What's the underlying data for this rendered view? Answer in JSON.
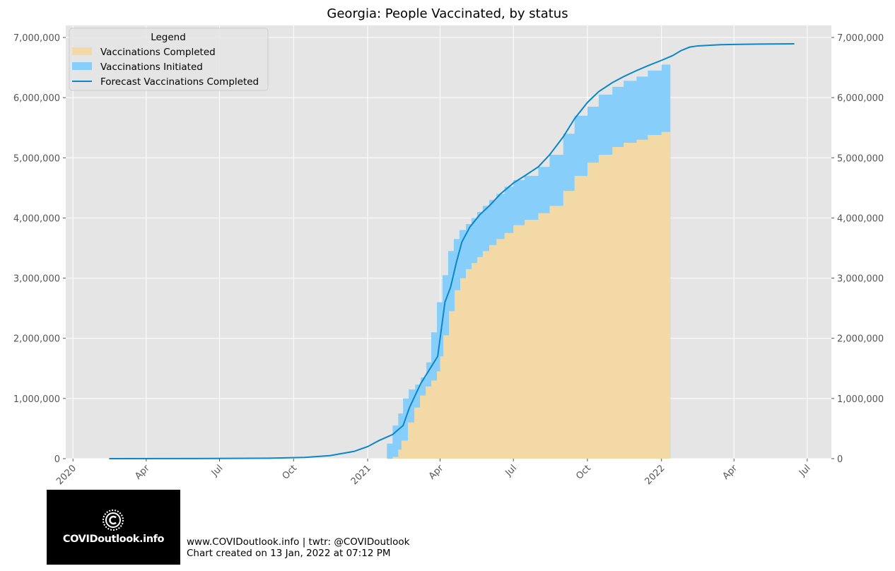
{
  "chart_data": {
    "type": "area",
    "title": "Georgia: People Vaccinated, by status",
    "xlabel": "",
    "ylabel": "",
    "x_range": [
      "2019-12-23",
      "2022-07-31"
    ],
    "ylim": [
      0,
      7200000
    ],
    "y_ticks": [
      0,
      1000000,
      2000000,
      3000000,
      4000000,
      5000000,
      6000000,
      7000000
    ],
    "y_tick_labels": [
      "0",
      "1,000,000",
      "2,000,000",
      "3,000,000",
      "4,000,000",
      "5,000,000",
      "6,000,000",
      "7,000,000"
    ],
    "x_ticks": [
      {
        "date": "2020-01-01",
        "label": "2020"
      },
      {
        "date": "2020-04-01",
        "label": "Apr"
      },
      {
        "date": "2020-07-01",
        "label": "Jul"
      },
      {
        "date": "2020-10-01",
        "label": "Oct"
      },
      {
        "date": "2021-01-01",
        "label": "2021"
      },
      {
        "date": "2021-04-01",
        "label": "Apr"
      },
      {
        "date": "2021-07-01",
        "label": "Jul"
      },
      {
        "date": "2021-10-01",
        "label": "Oct"
      },
      {
        "date": "2022-01-01",
        "label": "2022"
      },
      {
        "date": "2022-04-01",
        "label": "Apr"
      },
      {
        "date": "2022-07-01",
        "label": "Jul"
      }
    ],
    "grid": true,
    "legend_position": "top-left",
    "legend_title": "Legend",
    "series": [
      {
        "name": "Vaccinations Completed",
        "kind": "area",
        "color": "#f2d9a6",
        "points": [
          [
            "2021-01-24",
            0
          ],
          [
            "2021-02-01",
            30000
          ],
          [
            "2021-02-08",
            150000
          ],
          [
            "2021-02-12",
            300000
          ],
          [
            "2021-02-20",
            600000
          ],
          [
            "2021-02-28",
            850000
          ],
          [
            "2021-03-07",
            1050000
          ],
          [
            "2021-03-14",
            1200000
          ],
          [
            "2021-03-21",
            1300000
          ],
          [
            "2021-03-28",
            1450000
          ],
          [
            "2021-04-01",
            1700000
          ],
          [
            "2021-04-05",
            2050000
          ],
          [
            "2021-04-12",
            2450000
          ],
          [
            "2021-04-19",
            2800000
          ],
          [
            "2021-04-26",
            3000000
          ],
          [
            "2021-05-03",
            3150000
          ],
          [
            "2021-05-10",
            3250000
          ],
          [
            "2021-05-17",
            3350000
          ],
          [
            "2021-05-24",
            3450000
          ],
          [
            "2021-06-01",
            3550000
          ],
          [
            "2021-06-10",
            3650000
          ],
          [
            "2021-06-20",
            3750000
          ],
          [
            "2021-07-01",
            3880000
          ],
          [
            "2021-07-15",
            3970000
          ],
          [
            "2021-08-01",
            4080000
          ],
          [
            "2021-08-15",
            4200000
          ],
          [
            "2021-09-01",
            4450000
          ],
          [
            "2021-09-15",
            4700000
          ],
          [
            "2021-10-01",
            4920000
          ],
          [
            "2021-10-15",
            5050000
          ],
          [
            "2021-11-01",
            5180000
          ],
          [
            "2021-11-15",
            5250000
          ],
          [
            "2021-12-01",
            5300000
          ],
          [
            "2021-12-15",
            5380000
          ],
          [
            "2022-01-01",
            5430000
          ],
          [
            "2022-01-12",
            5470000
          ]
        ]
      },
      {
        "name": "Vaccinations Initiated",
        "kind": "area",
        "color": "#87cefa",
        "points": [
          [
            "2021-01-24",
            0
          ],
          [
            "2021-01-25",
            250000
          ],
          [
            "2021-02-01",
            550000
          ],
          [
            "2021-02-08",
            750000
          ],
          [
            "2021-02-14",
            1000000
          ],
          [
            "2021-02-21",
            1150000
          ],
          [
            "2021-03-01",
            1230000
          ],
          [
            "2021-03-08",
            1350000
          ],
          [
            "2021-03-15",
            1600000
          ],
          [
            "2021-03-21",
            2100000
          ],
          [
            "2021-03-28",
            2600000
          ],
          [
            "2021-04-04",
            3050000
          ],
          [
            "2021-04-11",
            3450000
          ],
          [
            "2021-04-18",
            3650000
          ],
          [
            "2021-04-25",
            3800000
          ],
          [
            "2021-05-03",
            3900000
          ],
          [
            "2021-05-10",
            4000000
          ],
          [
            "2021-05-17",
            4100000
          ],
          [
            "2021-05-24",
            4200000
          ],
          [
            "2021-06-01",
            4300000
          ],
          [
            "2021-06-10",
            4400000
          ],
          [
            "2021-06-20",
            4520000
          ],
          [
            "2021-07-01",
            4630000
          ],
          [
            "2021-07-15",
            4700000
          ],
          [
            "2021-08-01",
            4850000
          ],
          [
            "2021-08-15",
            5050000
          ],
          [
            "2021-09-01",
            5400000
          ],
          [
            "2021-09-15",
            5700000
          ],
          [
            "2021-10-01",
            5850000
          ],
          [
            "2021-10-15",
            6050000
          ],
          [
            "2021-11-01",
            6180000
          ],
          [
            "2021-11-15",
            6280000
          ],
          [
            "2021-12-01",
            6350000
          ],
          [
            "2021-12-15",
            6450000
          ],
          [
            "2022-01-01",
            6550000
          ],
          [
            "2022-01-12",
            6600000
          ]
        ]
      },
      {
        "name": "Forecast Vaccinations Completed",
        "kind": "line",
        "color": "#0a87c8",
        "points": [
          [
            "2020-02-15",
            0
          ],
          [
            "2020-06-01",
            1000
          ],
          [
            "2020-09-01",
            8000
          ],
          [
            "2020-10-15",
            20000
          ],
          [
            "2020-11-15",
            50000
          ],
          [
            "2020-12-15",
            120000
          ],
          [
            "2021-01-01",
            200000
          ],
          [
            "2021-01-15",
            300000
          ],
          [
            "2021-02-01",
            400000
          ],
          [
            "2021-02-14",
            550000
          ],
          [
            "2021-02-22",
            850000
          ],
          [
            "2021-03-01",
            1050000
          ],
          [
            "2021-03-08",
            1250000
          ],
          [
            "2021-03-15",
            1400000
          ],
          [
            "2021-03-22",
            1550000
          ],
          [
            "2021-03-29",
            1700000
          ],
          [
            "2021-04-02",
            2100000
          ],
          [
            "2021-04-07",
            2600000
          ],
          [
            "2021-04-14",
            2850000
          ],
          [
            "2021-04-21",
            3250000
          ],
          [
            "2021-04-28",
            3600000
          ],
          [
            "2021-05-08",
            3850000
          ],
          [
            "2021-05-20",
            4050000
          ],
          [
            "2021-06-01",
            4200000
          ],
          [
            "2021-06-15",
            4400000
          ],
          [
            "2021-07-01",
            4580000
          ],
          [
            "2021-07-15",
            4700000
          ],
          [
            "2021-08-01",
            4850000
          ],
          [
            "2021-08-15",
            5050000
          ],
          [
            "2021-09-01",
            5350000
          ],
          [
            "2021-09-15",
            5650000
          ],
          [
            "2021-10-01",
            5920000
          ],
          [
            "2021-10-15",
            6100000
          ],
          [
            "2021-11-01",
            6250000
          ],
          [
            "2021-11-15",
            6350000
          ],
          [
            "2021-12-01",
            6450000
          ],
          [
            "2021-12-15",
            6530000
          ],
          [
            "2022-01-01",
            6620000
          ],
          [
            "2022-01-15",
            6700000
          ],
          [
            "2022-01-25",
            6780000
          ],
          [
            "2022-02-05",
            6840000
          ],
          [
            "2022-02-15",
            6860000
          ],
          [
            "2022-03-01",
            6870000
          ],
          [
            "2022-03-15",
            6880000
          ],
          [
            "2022-04-01",
            6885000
          ],
          [
            "2022-05-01",
            6890000
          ],
          [
            "2022-06-15",
            6895000
          ]
        ]
      }
    ]
  },
  "footer": {
    "logo_text": "COVIDoutlook.info",
    "credit_line": "www.COVIDoutlook.info | twtr: @COVIDoutlook",
    "created_line": "Chart created on 13 Jan, 2022 at 07:12 PM"
  }
}
